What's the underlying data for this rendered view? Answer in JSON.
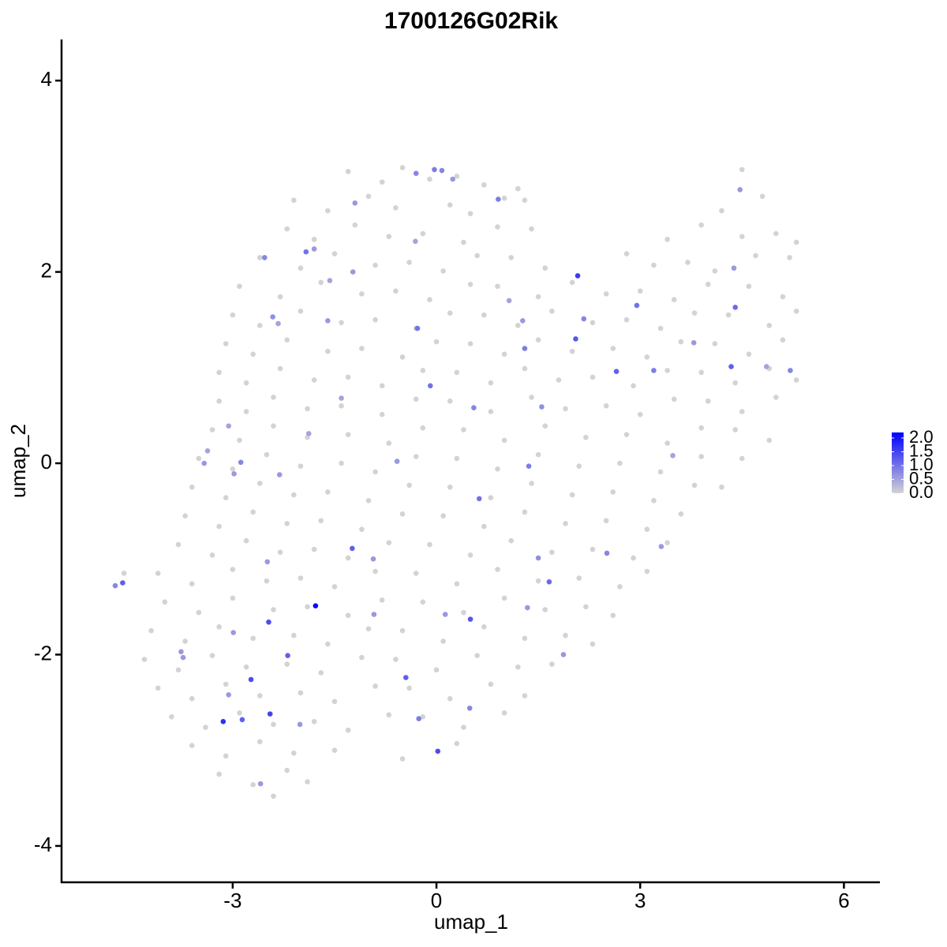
{
  "chart_data": {
    "type": "scatter",
    "title": "1700126G02Rik",
    "xlabel": "umap_1",
    "ylabel": "umap_2",
    "xlim": [
      -5.52,
      6.53
    ],
    "ylim": [
      -4.38,
      4.43
    ],
    "xticks": [
      -3,
      0,
      3,
      6
    ],
    "yticks": [
      -4,
      -2,
      0,
      2,
      4
    ],
    "color_low": "#d3d3d3",
    "color_high": "#0000ff",
    "colorbar": {
      "lim": [
        0,
        2.2
      ],
      "ticks": [
        {
          "value": 0,
          "label": "0.0"
        },
        {
          "value": 0.5,
          "label": "0.5"
        },
        {
          "value": 1,
          "label": "1.0"
        },
        {
          "value": 1.5,
          "label": "1.5"
        },
        {
          "value": 2,
          "label": "2.0"
        }
      ]
    },
    "x": [
      -1.3,
      -0.8,
      -0.5,
      -0.1,
      0.3,
      0.7,
      1.2,
      4.5,
      -2.1,
      -1.6,
      -1.0,
      -0.6,
      0.2,
      0.5,
      1.0,
      1.3,
      4.2,
      4.8,
      -2.2,
      -1.8,
      -1.2,
      -0.7,
      -0.2,
      0.4,
      0.9,
      1.4,
      3.4,
      3.9,
      4.5,
      5.0,
      5.3,
      -2.6,
      -2.0,
      -1.5,
      -0.9,
      -0.4,
      0.1,
      0.6,
      1.1,
      1.6,
      2.8,
      3.2,
      3.7,
      4.1,
      4.7,
      5.2,
      -2.9,
      -2.3,
      -1.7,
      -1.1,
      -0.6,
      -0.1,
      0.5,
      0.9,
      1.5,
      2.0,
      2.5,
      3.0,
      3.5,
      4.0,
      4.6,
      5.1,
      -3.0,
      -2.6,
      -2.0,
      -1.4,
      -0.9,
      -0.3,
      0.2,
      0.7,
      1.2,
      1.7,
      2.3,
      2.8,
      3.3,
      3.8,
      4.3,
      4.9,
      5.3,
      -3.1,
      -2.7,
      -2.2,
      -1.6,
      -1.1,
      -0.5,
      0.0,
      0.5,
      1.0,
      1.5,
      2.0,
      2.6,
      3.1,
      3.6,
      4.1,
      4.6,
      5.1,
      -3.2,
      -2.8,
      -2.3,
      -1.8,
      -1.3,
      -0.8,
      -0.2,
      0.3,
      0.8,
      1.3,
      1.8,
      2.3,
      2.9,
      3.4,
      3.9,
      4.4,
      4.9,
      5.3,
      -3.2,
      -2.8,
      -2.4,
      -1.9,
      -1.4,
      -0.8,
      -0.3,
      0.2,
      0.8,
      1.4,
      1.9,
      2.5,
      3.0,
      3.5,
      4.0,
      4.5,
      5.0,
      -3.3,
      -2.9,
      -2.4,
      -1.9,
      -1.3,
      -0.7,
      -0.2,
      0.4,
      1.0,
      1.6,
      2.2,
      2.8,
      3.4,
      3.9,
      4.4,
      4.9,
      -3.5,
      -3.0,
      -2.5,
      -2.0,
      -1.4,
      -0.9,
      -0.3,
      0.3,
      0.9,
      1.5,
      2.1,
      2.7,
      3.3,
      3.9,
      4.5,
      -3.6,
      -3.1,
      -2.6,
      -2.1,
      -1.6,
      -1.0,
      -0.4,
      0.2,
      0.8,
      1.4,
      2.0,
      2.6,
      3.2,
      3.8,
      4.2,
      -3.7,
      -3.2,
      -2.7,
      -2.2,
      -1.7,
      -1.1,
      -0.5,
      0.1,
      0.7,
      1.3,
      1.9,
      2.5,
      3.1,
      3.6,
      -3.8,
      -3.3,
      -2.8,
      -2.3,
      -1.8,
      -1.3,
      -0.7,
      -0.1,
      0.5,
      1.1,
      1.7,
      2.3,
      2.9,
      3.4,
      -4.1,
      -3.6,
      -3.0,
      -2.5,
      -2.0,
      -1.5,
      -0.9,
      -0.3,
      0.3,
      0.9,
      1.5,
      2.1,
      2.7,
      3.1,
      -4.6,
      -4.0,
      -3.5,
      -3.0,
      -2.4,
      -1.9,
      -1.3,
      -0.8,
      -0.2,
      0.4,
      1.0,
      1.6,
      2.2,
      2.6,
      -4.2,
      -3.7,
      -3.2,
      -2.7,
      -2.1,
      -1.6,
      -1.0,
      -0.5,
      0.1,
      0.7,
      1.3,
      1.9,
      2.3,
      -4.3,
      -3.8,
      -3.3,
      -2.8,
      -2.2,
      -1.7,
      -1.1,
      -0.6,
      0.0,
      0.6,
      1.2,
      1.7,
      -4.1,
      -3.6,
      -3.1,
      -2.6,
      -2.0,
      -1.5,
      -0.9,
      -0.4,
      0.2,
      0.8,
      1.3,
      -3.9,
      -3.4,
      -2.9,
      -2.4,
      -1.8,
      -1.3,
      -0.7,
      -0.2,
      0.4,
      1.0,
      -3.6,
      -3.1,
      -2.6,
      -2.1,
      -1.5,
      -0.5,
      0.3,
      -3.2,
      -2.7,
      -2.2,
      -1.9,
      -2.4,
      -4.73,
      -4.62,
      -2.53,
      -1.92,
      -1.8,
      -1.23,
      -2.33,
      -2.41,
      -1.57,
      -1.6,
      -0.28,
      -0.09,
      -0.03,
      0.08,
      -0.3,
      0.91,
      0.24,
      2.08,
      2.05,
      2.17,
      1.3,
      1.55,
      2.65,
      2.95,
      4.38,
      4.34,
      4.4,
      4.47,
      5.21,
      3.2,
      0.55,
      -0.58,
      0.63,
      1.36,
      -1.24,
      -1.78,
      -2.47,
      -2.19,
      -2.73,
      -3.14,
      -2.86,
      -2.45,
      -0.45,
      0.02,
      -0.26,
      0.5,
      0.49,
      1.66,
      2.51,
      1.87,
      1.5,
      3.31,
      -3.42,
      -2.88,
      -2.98,
      -3.73,
      -3.76,
      -2.99,
      -3.06,
      -2.31,
      -2.49,
      -0.93,
      -0.92,
      0.13,
      1.34,
      -2.01,
      -2.59,
      -1.4,
      -1.88,
      -3.06,
      -3.37,
      1.27,
      1.07,
      3.48,
      3.79,
      4.86,
      -1.2,
      -0.31
    ],
    "y": [
      3.05,
      2.94,
      3.09,
      2.97,
      3.0,
      2.91,
      2.87,
      3.07,
      2.75,
      2.64,
      2.79,
      2.67,
      2.7,
      2.61,
      2.77,
      2.75,
      2.64,
      2.79,
      2.45,
      2.34,
      2.49,
      2.37,
      2.4,
      2.31,
      2.47,
      2.45,
      2.34,
      2.49,
      2.37,
      2.4,
      2.31,
      2.15,
      2.04,
      2.19,
      2.07,
      2.1,
      2.01,
      2.17,
      2.15,
      2.04,
      2.19,
      2.07,
      2.1,
      2.01,
      2.17,
      2.15,
      1.85,
      1.74,
      1.89,
      1.77,
      1.8,
      1.71,
      1.87,
      1.85,
      1.74,
      1.89,
      1.77,
      1.8,
      1.71,
      1.87,
      1.85,
      1.74,
      1.55,
      1.44,
      1.59,
      1.47,
      1.5,
      1.41,
      1.57,
      1.55,
      1.44,
      1.59,
      1.47,
      1.5,
      1.41,
      1.57,
      1.55,
      1.44,
      1.59,
      1.25,
      1.14,
      1.29,
      1.17,
      1.2,
      1.11,
      1.27,
      1.25,
      1.14,
      1.29,
      1.17,
      1.2,
      1.11,
      1.27,
      1.25,
      1.14,
      1.29,
      0.95,
      0.84,
      0.99,
      0.87,
      0.9,
      0.81,
      0.97,
      0.95,
      0.84,
      0.99,
      0.87,
      0.9,
      0.81,
      0.97,
      0.95,
      0.84,
      0.99,
      0.87,
      0.65,
      0.54,
      0.69,
      0.57,
      0.6,
      0.51,
      0.67,
      0.65,
      0.54,
      0.69,
      0.57,
      0.6,
      0.51,
      0.67,
      0.65,
      0.54,
      0.69,
      0.35,
      0.24,
      0.39,
      0.27,
      0.3,
      0.21,
      0.37,
      0.35,
      0.24,
      0.39,
      0.27,
      0.3,
      0.21,
      0.37,
      0.35,
      0.24,
      0.05,
      -0.06,
      0.09,
      -0.03,
      0,
      -0.09,
      0.07,
      0.05,
      -0.06,
      0.09,
      -0.03,
      0,
      -0.09,
      0.07,
      0.05,
      -0.25,
      -0.36,
      -0.21,
      -0.33,
      -0.3,
      -0.39,
      -0.23,
      -0.25,
      -0.36,
      -0.21,
      -0.33,
      -0.3,
      -0.39,
      -0.23,
      -0.25,
      -0.55,
      -0.66,
      -0.51,
      -0.63,
      -0.6,
      -0.69,
      -0.53,
      -0.55,
      -0.66,
      -0.51,
      -0.63,
      -0.6,
      -0.69,
      -0.53,
      -0.85,
      -0.96,
      -0.81,
      -0.93,
      -0.9,
      -0.99,
      -0.83,
      -0.85,
      -0.96,
      -0.81,
      -0.93,
      -0.9,
      -0.99,
      -0.83,
      -1.15,
      -1.26,
      -1.11,
      -1.23,
      -1.2,
      -1.29,
      -1.13,
      -1.15,
      -1.26,
      -1.11,
      -1.23,
      -1.2,
      -1.29,
      -1.13,
      -1.15,
      -1.45,
      -1.56,
      -1.41,
      -1.53,
      -1.5,
      -1.59,
      -1.43,
      -1.45,
      -1.56,
      -1.41,
      -1.53,
      -1.5,
      -1.59,
      -1.75,
      -1.86,
      -1.71,
      -1.83,
      -1.8,
      -1.89,
      -1.73,
      -1.75,
      -1.86,
      -1.71,
      -1.83,
      -1.8,
      -1.89,
      -2.05,
      -2.16,
      -2.01,
      -2.13,
      -2.1,
      -2.19,
      -2.03,
      -2.05,
      -2.16,
      -2.01,
      -2.13,
      -2.1,
      -2.35,
      -2.46,
      -2.31,
      -2.43,
      -2.4,
      -2.49,
      -2.33,
      -2.35,
      -2.46,
      -2.31,
      -2.43,
      -2.65,
      -2.76,
      -2.61,
      -2.73,
      -2.7,
      -2.79,
      -2.63,
      -2.65,
      -2.76,
      -2.61,
      -2.95,
      -3.06,
      -2.91,
      -3.03,
      -3.0,
      -3.09,
      -2.93,
      -3.25,
      -3.36,
      -3.21,
      -3.33,
      -3.48,
      -1.28,
      -1.25,
      2.15,
      2.21,
      2.24,
      2.0,
      1.46,
      1.53,
      1.91,
      1.49,
      1.41,
      0.81,
      3.07,
      3.06,
      3.03,
      2.76,
      2.97,
      1.96,
      1.3,
      1.51,
      1.2,
      0.59,
      0.96,
      1.65,
      2.04,
      1.01,
      1.63,
      2.86,
      0.97,
      0.97,
      0.58,
      0.02,
      -0.37,
      -0.03,
      -0.89,
      -1.49,
      -1.66,
      -2.01,
      -2.26,
      -2.7,
      -2.68,
      -2.62,
      -2.24,
      -3.01,
      -2.67,
      -1.63,
      -2.56,
      -1.24,
      -0.94,
      -2.0,
      -0.99,
      -0.87,
      0.0,
      0.01,
      -0.11,
      -2.03,
      -1.97,
      -1.77,
      -2.42,
      -0.12,
      -1.03,
      -1.0,
      -1.58,
      -1.58,
      -1.51,
      -2.73,
      -3.35,
      0.68,
      0.31,
      0.39,
      0.13,
      1.49,
      1.7,
      0.08,
      1.26,
      1.01,
      2.72,
      2.32
    ],
    "expression": [
      0,
      0,
      0,
      0,
      0,
      0,
      0,
      0,
      0,
      0,
      0,
      0,
      0,
      0,
      0,
      0,
      0,
      0,
      0,
      0,
      0,
      0,
      0,
      0,
      0,
      0,
      0,
      0,
      0,
      0,
      0,
      0,
      0,
      0,
      0,
      0,
      0,
      0,
      0,
      0,
      0,
      0,
      0,
      0,
      0,
      0,
      0,
      0,
      0,
      0,
      0,
      0,
      0,
      0,
      0,
      0,
      0,
      0,
      0,
      0,
      0,
      0,
      0,
      0,
      0,
      0,
      0,
      0,
      0,
      0,
      0,
      0,
      0,
      0,
      0,
      0,
      0,
      0,
      0,
      0,
      0,
      0,
      0,
      0,
      0,
      0,
      0,
      0,
      0,
      0,
      0,
      0,
      0,
      0,
      0,
      0,
      0,
      0,
      0,
      0,
      0,
      0,
      0,
      0,
      0,
      0,
      0,
      0,
      0,
      0,
      0,
      0,
      0,
      0,
      0,
      0,
      0,
      0,
      0,
      0,
      0,
      0,
      0,
      0,
      0,
      0,
      0,
      0,
      0,
      0,
      0,
      0,
      0,
      0,
      0,
      0,
      0,
      0,
      0,
      0,
      0,
      0,
      0,
      0,
      0,
      0,
      0,
      0,
      0,
      0,
      0,
      0,
      0,
      0,
      0,
      0,
      0,
      0,
      0,
      0,
      0,
      0,
      0,
      0,
      0,
      0,
      0,
      0,
      0,
      0,
      0,
      0,
      0,
      0,
      0,
      0,
      0,
      0,
      0,
      0,
      0,
      0,
      0,
      0,
      0,
      0,
      0,
      0,
      0,
      0,
      0,
      0,
      0,
      0,
      0,
      0,
      0,
      0,
      0,
      0,
      0,
      0,
      0,
      0,
      0,
      0,
      0,
      0,
      0,
      0,
      0,
      0,
      0,
      0,
      0,
      0,
      0,
      0,
      0,
      0,
      0,
      0,
      0,
      0,
      0,
      0,
      0,
      0,
      0,
      0,
      0,
      0,
      0,
      0,
      0,
      0,
      0,
      0,
      0,
      0,
      0,
      0,
      0,
      0,
      0,
      0,
      0,
      0,
      0,
      0,
      0,
      0,
      0,
      0,
      0,
      0,
      0,
      0,
      0,
      0,
      0,
      0,
      0,
      0,
      0,
      0,
      0,
      0,
      0,
      0,
      0,
      0,
      0,
      0,
      0,
      0,
      0,
      0,
      0,
      0,
      0,
      0,
      0,
      0,
      0,
      0,
      0,
      0,
      0,
      0,
      0,
      0.8,
      1.2,
      0.8,
      1.0,
      0.6,
      0.6,
      0.5,
      0.7,
      0.5,
      0.6,
      1.0,
      1.0,
      0.9,
      0.8,
      0.8,
      0.9,
      0.6,
      1.6,
      1.3,
      0.8,
      0.9,
      0.7,
      1.2,
      1.0,
      0.6,
      1.2,
      1.1,
      0.6,
      0.8,
      0.9,
      0.8,
      0.6,
      1.0,
      0.9,
      1.2,
      2.1,
      1.4,
      1.2,
      1.4,
      1.7,
      1.2,
      1.5,
      1.2,
      1.4,
      0.9,
      1.3,
      0.8,
      1.1,
      0.8,
      0.6,
      0.7,
      0.6,
      0.6,
      0.8,
      0.6,
      0.6,
      0.6,
      0.6,
      0.6,
      0.6,
      0.6,
      0.6,
      0.6,
      0.6,
      0.6,
      0.6,
      0.6,
      0.5,
      0.5,
      0.5,
      0.5,
      0.6,
      0.5,
      0.5,
      0.6,
      0.5,
      0.6,
      0.5
    ]
  }
}
